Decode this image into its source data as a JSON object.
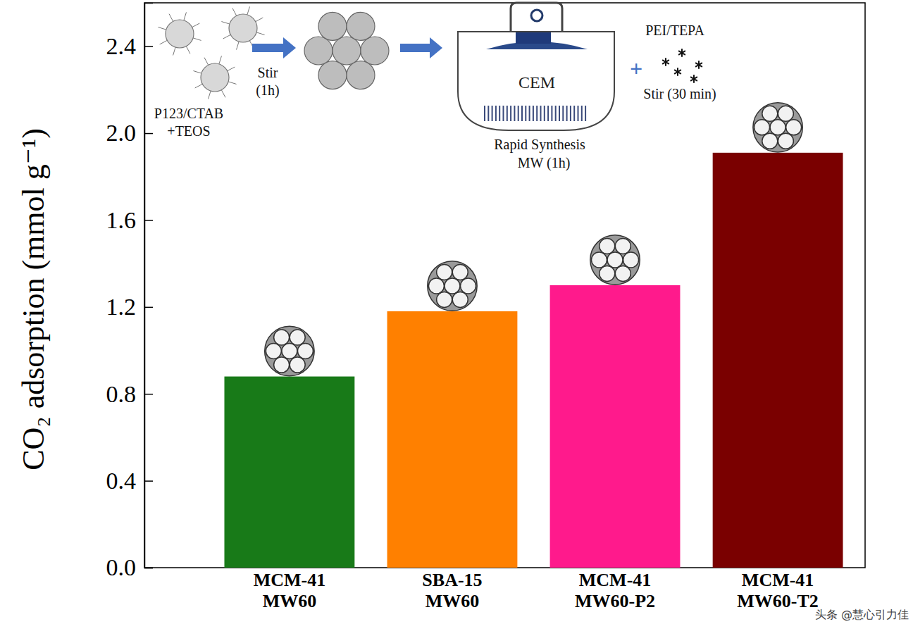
{
  "chart_data": {
    "type": "bar",
    "categories": [
      "MCM-41 MW60",
      "SBA-15 MW60",
      "MCM-41 MW60-P2",
      "MCM-41 MW60-T2"
    ],
    "values": [
      0.88,
      1.18,
      1.3,
      1.91
    ],
    "colors": [
      "#187a18",
      "#ff8000",
      "#ff1a8c",
      "#7a0000"
    ],
    "y_label": "CO₂ adsorption (mmol g⁻¹)",
    "ylim": [
      0,
      2.6
    ],
    "yticks": [
      {
        "value": 0,
        "label": "0.0"
      },
      0.4,
      0.8,
      1.2,
      1.6,
      {
        "value": 2,
        "label": "2.0"
      },
      2.4
    ],
    "annotations": [
      "P123/CTAB",
      "+TEOS",
      "Stir",
      "(1h)",
      "CEM",
      "Rapid Synthesis",
      "MW (1h)",
      "+",
      "PEI/TEPA",
      "Stir (30 min)",
      "头条 @慧心引力佳"
    ]
  }
}
